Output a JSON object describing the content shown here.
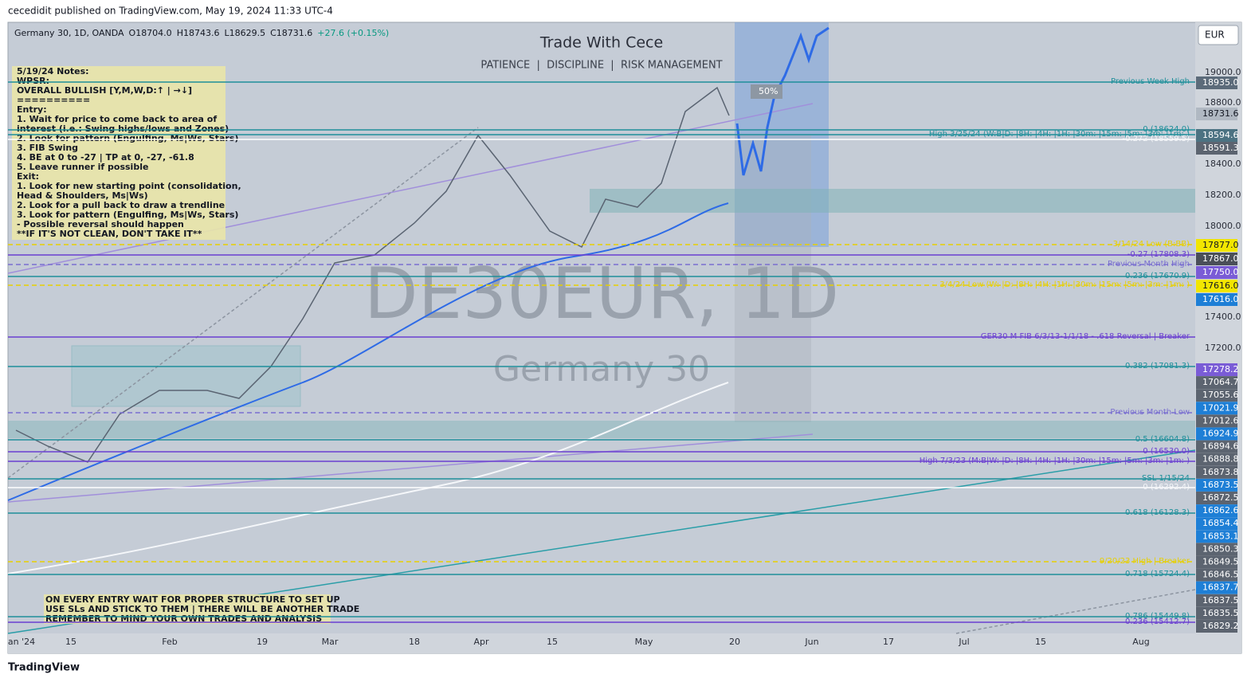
{
  "header": {
    "publisher": "cecedidit published on TradingView.com, May 19, 2024 11:33 UTC-4",
    "symbol": "Germany 30, 1D, OANDA",
    "open": "O18704.0",
    "high": "H18743.6",
    "low": "L18629.5",
    "close": "C18731.6",
    "change": "+27.6 (+0.15%)",
    "currency": "EUR"
  },
  "title": "Trade With Cece",
  "subtitle": "PATIENCE  |  DISCIPLINE  |  RISK MANAGEMENT",
  "watermark": {
    "symbol": "DE30EUR, 1D",
    "name": "Germany 30"
  },
  "notes": [
    "5/19/24 Notes:",
    "WPSR:",
    "OVERALL BULLISH [Y,M,W,D:↑ | →↓]",
    "==========",
    "Entry:",
    "1. Wait for price to come back to area of",
    "    interest (i.e.: Swing highs/lows and Zones)",
    "2. Look for pattern (Engulfing, Ms|Ws, Stars)",
    "3. FIB Swing",
    "4. BE at 0 to -27 | TP at 0, -27, -61.8",
    "5. Leave runner if possible",
    "Exit:",
    "1. Look for new starting point (consolidation,",
    "      Head & Shoulders, Ms|Ws)",
    "2. Look for a pull back to draw a trendline",
    "3. Look for pattern (Engulfing, Ms|Ws, Stars)",
    "   - Possible reversal should happen",
    "     **IF IT'S NOT CLEAN, DON'T TAKE IT**"
  ],
  "bottom_note": [
    "ON EVERY ENTRY WAIT FOR PROPER STRUCTURE TO SET UP",
    "USE SLs AND STICK TO THEM | THERE WILL BE ANOTHER TRADE",
    "REMEMBER TO MIND YOUR OWN TRADES AND ANALYSIS"
  ],
  "badge": "50%",
  "price_axis": [
    "19000.0",
    "18800.0",
    "18400.0",
    "18200.0",
    "18000.0",
    "17400.0",
    "17200.0"
  ],
  "price_tags": [
    "18935.0",
    "18731.6",
    "18594.6",
    "18591.3",
    "17877.0",
    "17867.0",
    "17750.0",
    "17616.0",
    "17616.0",
    "17278.2",
    "17064.7",
    "17055.6",
    "17021.9",
    "17012.6",
    "16924.9",
    "16894.6",
    "16888.8",
    "16873.8",
    "16873.5",
    "16872.5",
    "16862.6",
    "16854.4",
    "16853.1",
    "16850.3",
    "16849.5",
    "16846.5",
    "16837.7",
    "16837.5",
    "16835.5",
    "16829.2"
  ],
  "levels": [
    "Previous Week High",
    "0 (18624.0)",
    "High 3/25/24 (W:B|D: |8H: |4H: |1H: |30m: |15m: |5m: |3m: |1m: )",
    "-0.272 (18559.5)",
    "3/14/24 Low (B:BB)",
    "-0.27 (17808.3)",
    "Previous Month High",
    "0.236 (17670.9)",
    "3/4/24 Low (W: |D: |8H: |4H: |1H: |30m: |15m: |5m: |3m: |1m: )",
    "GER30 M FIB 6/3/13-1/1/18 - .618 Reversal | Breaker",
    "0.382 (17081.3)",
    "Previous Month Low",
    "0.5 (16604.8)",
    "0 (16530.0)",
    "High 7/3/23 (M:B|W: |D: |8H: |4H: |1H: |30m: |15m: |5m: |3m: |1m: )",
    "SSL 1/15/24",
    "0 (16292.4)",
    "0.618 (16128.3)",
    "9/20/23 High | Breaker",
    "0.718 (15724.4)",
    "0.786 (15449.8)",
    "0.236 (15412.7)"
  ],
  "time_axis": [
    "an '24",
    "15",
    "Feb",
    "19",
    "Mar",
    "18",
    "Apr",
    "15",
    "May",
    "20",
    "Jun",
    "17",
    "Jul",
    "15",
    "Aug"
  ],
  "footer": "TradingView"
}
